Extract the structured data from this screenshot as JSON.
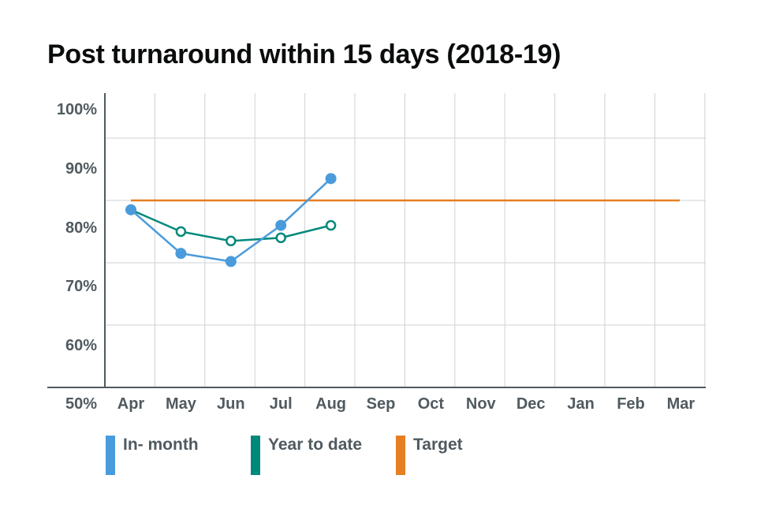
{
  "chart_data": {
    "type": "line",
    "title": "Post turnaround within 15 days (2018-19)",
    "categories": [
      "Apr",
      "May",
      "Jun",
      "Jul",
      "Aug",
      "Sep",
      "Oct",
      "Nov",
      "Dec",
      "Jan",
      "Feb",
      "Mar"
    ],
    "y_ticks": [
      "50%",
      "60%",
      "70%",
      "80%",
      "90%",
      "100%"
    ],
    "ylim": [
      50,
      100
    ],
    "grid": true,
    "legend_position": "bottom",
    "series": [
      {
        "name": "In- month",
        "color": "#4a9bdb",
        "marker": "filled",
        "values": [
          78.5,
          71.5,
          70.2,
          76,
          83.5,
          null,
          null,
          null,
          null,
          null,
          null,
          null
        ]
      },
      {
        "name": "Year to date",
        "color": "#00897b",
        "marker": "open",
        "values": [
          78.5,
          75,
          73.5,
          74,
          76,
          null,
          null,
          null,
          null,
          null,
          null,
          null
        ]
      },
      {
        "name": "Target",
        "color": "#e67e22",
        "marker": "none",
        "values": [
          80,
          80,
          80,
          80,
          80,
          80,
          80,
          80,
          80,
          80,
          80,
          80
        ]
      }
    ]
  }
}
